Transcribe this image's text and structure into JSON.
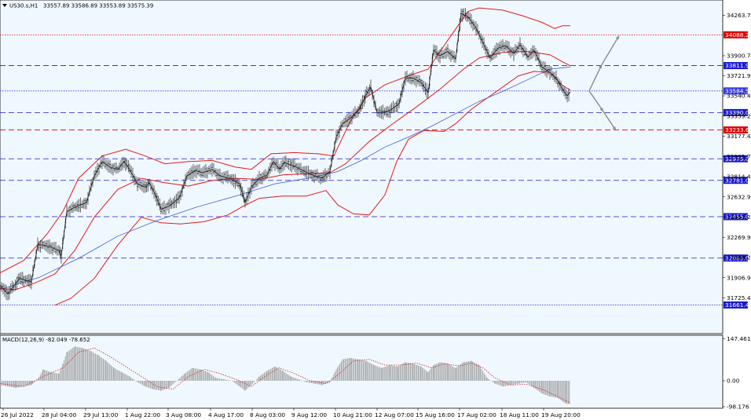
{
  "window": {
    "symbol_label": "US30.s,H1",
    "ohlc_label": "33557.89 33586.89 33553.89 33575.39",
    "menu_icon": "triangle-down-icon"
  },
  "macd": {
    "label": "MACD(12,26,9) -82.049 -78.652",
    "ticks": [
      "147.461",
      "0.00",
      "-98.176"
    ],
    "range": [
      -98.176,
      147.461
    ]
  },
  "chart_data": {
    "type": "line",
    "title": "",
    "ylim": [
      31661.46,
      34400
    ],
    "grid": false,
    "price_ticks": [
      "34263.70",
      "33900.70",
      "33721.95",
      "33540.45",
      "33359.20",
      "33177.45",
      "32995.70",
      "32814.45",
      "32632.95",
      "32451.20",
      "32269.95",
      "32088.20",
      "31906.95",
      "31725.45"
    ],
    "x_tick_labels": [
      "26 Jul 2022",
      "28 Jul 04:00",
      "29 Jul 13:00",
      "1 Aug 22:00",
      "3 Aug 08:00",
      "4 Aug 17:00",
      "8 Aug 03:00",
      "9 Aug 12:00",
      "10 Aug 21:00",
      "12 Aug 07:00",
      "15 Aug 16:00",
      "17 Aug 02:00",
      "18 Aug 11:00",
      "19 Aug 20:00"
    ],
    "levels": [
      {
        "value": "34088.20",
        "color": "#dd0000",
        "style": "dotted"
      },
      {
        "value": "33811.92",
        "color": "#1a1ad0",
        "style": "dashed"
      },
      {
        "value": "33584.59",
        "color": "#3a3ae0",
        "style": "dotted"
      },
      {
        "value": "33390.00",
        "color": "#1a1ad0",
        "style": "dashed"
      },
      {
        "value": "33233.63",
        "color": "#dd0000",
        "style": "dashed"
      },
      {
        "value": "32975.00",
        "color": "#1a1ad0",
        "style": "dashed"
      },
      {
        "value": "32781.00",
        "color": "#1a1ad0",
        "style": "dashed"
      },
      {
        "value": "32455.00",
        "color": "#1a1ad0",
        "style": "dashed"
      },
      {
        "value": "32083.00",
        "color": "#1a1ad0",
        "style": "dashed"
      },
      {
        "value": "31661.46",
        "color": "#1a1ad0",
        "style": "dotted"
      }
    ],
    "price_path": [
      [
        0,
        31840
      ],
      [
        10,
        31760
      ],
      [
        25,
        31900
      ],
      [
        40,
        31870
      ],
      [
        48,
        32200
      ],
      [
        55,
        32200
      ],
      [
        65,
        32180
      ],
      [
        75,
        32150
      ],
      [
        78,
        32100
      ],
      [
        85,
        32500
      ],
      [
        95,
        32540
      ],
      [
        110,
        32580
      ],
      [
        120,
        32820
      ],
      [
        130,
        32950
      ],
      [
        140,
        32900
      ],
      [
        150,
        32880
      ],
      [
        158,
        32950
      ],
      [
        165,
        32880
      ],
      [
        175,
        32750
      ],
      [
        185,
        32720
      ],
      [
        190,
        32760
      ],
      [
        198,
        32650
      ],
      [
        205,
        32520
      ],
      [
        215,
        32550
      ],
      [
        228,
        32620
      ],
      [
        238,
        32820
      ],
      [
        248,
        32870
      ],
      [
        258,
        32850
      ],
      [
        270,
        32880
      ],
      [
        280,
        32820
      ],
      [
        292,
        32800
      ],
      [
        305,
        32750
      ],
      [
        312,
        32580
      ],
      [
        320,
        32720
      ],
      [
        330,
        32800
      ],
      [
        340,
        32830
      ],
      [
        348,
        32950
      ],
      [
        356,
        32880
      ],
      [
        362,
        32940
      ],
      [
        375,
        32910
      ],
      [
        385,
        32870
      ],
      [
        398,
        32830
      ],
      [
        410,
        32800
      ],
      [
        420,
        32860
      ],
      [
        428,
        33170
      ],
      [
        436,
        33290
      ],
      [
        446,
        33340
      ],
      [
        458,
        33420
      ],
      [
        465,
        33540
      ],
      [
        472,
        33620
      ],
      [
        480,
        33390
      ],
      [
        495,
        33400
      ],
      [
        508,
        33470
      ],
      [
        516,
        33700
      ],
      [
        526,
        33700
      ],
      [
        536,
        33660
      ],
      [
        545,
        33570
      ],
      [
        552,
        33950
      ],
      [
        560,
        33900
      ],
      [
        570,
        33940
      ],
      [
        580,
        33870
      ],
      [
        587,
        34280
      ],
      [
        596,
        34250
      ],
      [
        606,
        34150
      ],
      [
        616,
        34000
      ],
      [
        624,
        33880
      ],
      [
        634,
        33970
      ],
      [
        644,
        33990
      ],
      [
        654,
        33920
      ],
      [
        662,
        34000
      ],
      [
        672,
        33890
      ],
      [
        680,
        33950
      ],
      [
        690,
        33800
      ],
      [
        700,
        33750
      ],
      [
        708,
        33700
      ],
      [
        716,
        33600
      ],
      [
        722,
        33540
      ],
      [
        726,
        33575
      ]
    ],
    "bollinger_upper": [
      [
        0,
        31950
      ],
      [
        30,
        32060
      ],
      [
        60,
        32300
      ],
      [
        80,
        32500
      ],
      [
        100,
        32800
      ],
      [
        130,
        33000
      ],
      [
        160,
        33060
      ],
      [
        185,
        33000
      ],
      [
        210,
        32930
      ],
      [
        240,
        32950
      ],
      [
        270,
        32960
      ],
      [
        300,
        32900
      ],
      [
        320,
        32880
      ],
      [
        345,
        33020
      ],
      [
        375,
        33030
      ],
      [
        405,
        33020
      ],
      [
        425,
        33000
      ],
      [
        445,
        33300
      ],
      [
        465,
        33520
      ],
      [
        490,
        33640
      ],
      [
        520,
        33720
      ],
      [
        545,
        33780
      ],
      [
        570,
        34040
      ],
      [
        596,
        34300
      ],
      [
        610,
        34330
      ],
      [
        640,
        34310
      ],
      [
        665,
        34260
      ],
      [
        690,
        34200
      ],
      [
        706,
        34145
      ],
      [
        716,
        34170
      ],
      [
        726,
        34170
      ]
    ],
    "bollinger_mid": [
      [
        0,
        31810
      ],
      [
        20,
        31800
      ],
      [
        45,
        31860
      ],
      [
        70,
        31940
      ],
      [
        95,
        32150
      ],
      [
        120,
        32450
      ],
      [
        150,
        32700
      ],
      [
        180,
        32800
      ],
      [
        210,
        32760
      ],
      [
        240,
        32730
      ],
      [
        270,
        32780
      ],
      [
        300,
        32800
      ],
      [
        330,
        32790
      ],
      [
        360,
        32830
      ],
      [
        390,
        32840
      ],
      [
        420,
        32850
      ],
      [
        440,
        32930
      ],
      [
        470,
        33130
      ],
      [
        500,
        33290
      ],
      [
        530,
        33440
      ],
      [
        560,
        33600
      ],
      [
        590,
        33780
      ],
      [
        610,
        33880
      ],
      [
        640,
        33930
      ],
      [
        670,
        33940
      ],
      [
        700,
        33910
      ],
      [
        715,
        33850
      ],
      [
        726,
        33810
      ]
    ],
    "bollinger_lower": [
      [
        70,
        31660
      ],
      [
        90,
        31720
      ],
      [
        120,
        31900
      ],
      [
        150,
        32200
      ],
      [
        180,
        32450
      ],
      [
        205,
        32400
      ],
      [
        230,
        32390
      ],
      [
        260,
        32410
      ],
      [
        290,
        32470
      ],
      [
        310,
        32550
      ],
      [
        330,
        32620
      ],
      [
        360,
        32640
      ],
      [
        390,
        32640
      ],
      [
        415,
        32690
      ],
      [
        430,
        32560
      ],
      [
        450,
        32480
      ],
      [
        470,
        32470
      ],
      [
        490,
        32650
      ],
      [
        505,
        32950
      ],
      [
        520,
        33150
      ],
      [
        540,
        33230
      ],
      [
        565,
        33220
      ],
      [
        580,
        33290
      ],
      [
        600,
        33420
      ],
      [
        620,
        33520
      ],
      [
        640,
        33620
      ],
      [
        660,
        33720
      ],
      [
        680,
        33760
      ],
      [
        700,
        33750
      ],
      [
        715,
        33640
      ],
      [
        726,
        33590
      ]
    ],
    "ma_blue": [
      [
        0,
        31800
      ],
      [
        50,
        31910
      ],
      [
        100,
        32080
      ],
      [
        150,
        32280
      ],
      [
        200,
        32420
      ],
      [
        250,
        32540
      ],
      [
        300,
        32640
      ],
      [
        350,
        32750
      ],
      [
        400,
        32810
      ],
      [
        430,
        32860
      ],
      [
        460,
        32960
      ],
      [
        490,
        33080
      ],
      [
        520,
        33170
      ],
      [
        550,
        33270
      ],
      [
        580,
        33380
      ],
      [
        610,
        33490
      ],
      [
        640,
        33580
      ],
      [
        670,
        33680
      ],
      [
        700,
        33780
      ],
      [
        726,
        33800
      ]
    ],
    "forecast_arrows": [
      {
        "from": [
          750,
          33585
        ],
        "to": [
          766,
          33820
        ]
      },
      {
        "from": [
          766,
          33820
        ],
        "to": [
          788,
          34080
        ]
      },
      {
        "from": [
          750,
          33585
        ],
        "to": [
          768,
          33400
        ]
      },
      {
        "from": [
          768,
          33400
        ],
        "to": [
          784,
          33230
        ]
      }
    ],
    "macd_series": [
      [
        0,
        -15
      ],
      [
        20,
        -25
      ],
      [
        40,
        -15
      ],
      [
        48,
        5
      ],
      [
        55,
        40
      ],
      [
        65,
        30
      ],
      [
        75,
        25
      ],
      [
        80,
        60
      ],
      [
        85,
        100
      ],
      [
        95,
        120
      ],
      [
        105,
        115
      ],
      [
        115,
        105
      ],
      [
        125,
        90
      ],
      [
        135,
        70
      ],
      [
        145,
        45
      ],
      [
        155,
        30
      ],
      [
        165,
        15
      ],
      [
        175,
        -5
      ],
      [
        185,
        -20
      ],
      [
        195,
        -30
      ],
      [
        205,
        -35
      ],
      [
        215,
        -25
      ],
      [
        225,
        0
      ],
      [
        235,
        25
      ],
      [
        245,
        45
      ],
      [
        255,
        40
      ],
      [
        265,
        30
      ],
      [
        275,
        10
      ],
      [
        285,
        5
      ],
      [
        295,
        0
      ],
      [
        305,
        -20
      ],
      [
        312,
        -35
      ],
      [
        320,
        -15
      ],
      [
        330,
        15
      ],
      [
        340,
        35
      ],
      [
        350,
        50
      ],
      [
        360,
        35
      ],
      [
        370,
        15
      ],
      [
        380,
        5
      ],
      [
        390,
        -5
      ],
      [
        400,
        -10
      ],
      [
        410,
        -15
      ],
      [
        420,
        -5
      ],
      [
        428,
        40
      ],
      [
        436,
        75
      ],
      [
        446,
        80
      ],
      [
        456,
        75
      ],
      [
        466,
        70
      ],
      [
        476,
        55
      ],
      [
        486,
        45
      ],
      [
        496,
        55
      ],
      [
        506,
        50
      ],
      [
        516,
        65
      ],
      [
        526,
        60
      ],
      [
        536,
        50
      ],
      [
        545,
        30
      ],
      [
        552,
        55
      ],
      [
        560,
        65
      ],
      [
        570,
        60
      ],
      [
        580,
        45
      ],
      [
        590,
        65
      ],
      [
        600,
        70
      ],
      [
        610,
        55
      ],
      [
        620,
        10
      ],
      [
        630,
        -10
      ],
      [
        640,
        -20
      ],
      [
        650,
        -15
      ],
      [
        660,
        -10
      ],
      [
        670,
        -5
      ],
      [
        680,
        -25
      ],
      [
        690,
        -45
      ],
      [
        700,
        -55
      ],
      [
        710,
        -60
      ],
      [
        720,
        -80
      ],
      [
        726,
        -82
      ]
    ],
    "macd_signal": [
      [
        0,
        -10
      ],
      [
        30,
        -20
      ],
      [
        55,
        15
      ],
      [
        80,
        45
      ],
      [
        100,
        100
      ],
      [
        120,
        115
      ],
      [
        140,
        85
      ],
      [
        160,
        50
      ],
      [
        180,
        15
      ],
      [
        200,
        -20
      ],
      [
        220,
        -30
      ],
      [
        240,
        15
      ],
      [
        260,
        40
      ],
      [
        280,
        25
      ],
      [
        300,
        5
      ],
      [
        320,
        -20
      ],
      [
        340,
        20
      ],
      [
        355,
        45
      ],
      [
        375,
        25
      ],
      [
        395,
        0
      ],
      [
        415,
        -10
      ],
      [
        430,
        20
      ],
      [
        450,
        70
      ],
      [
        470,
        75
      ],
      [
        490,
        55
      ],
      [
        510,
        55
      ],
      [
        530,
        62
      ],
      [
        550,
        45
      ],
      [
        565,
        60
      ],
      [
        585,
        52
      ],
      [
        600,
        62
      ],
      [
        615,
        45
      ],
      [
        630,
        10
      ],
      [
        650,
        -15
      ],
      [
        670,
        -12
      ],
      [
        690,
        -30
      ],
      [
        710,
        -55
      ],
      [
        726,
        -78
      ]
    ]
  }
}
